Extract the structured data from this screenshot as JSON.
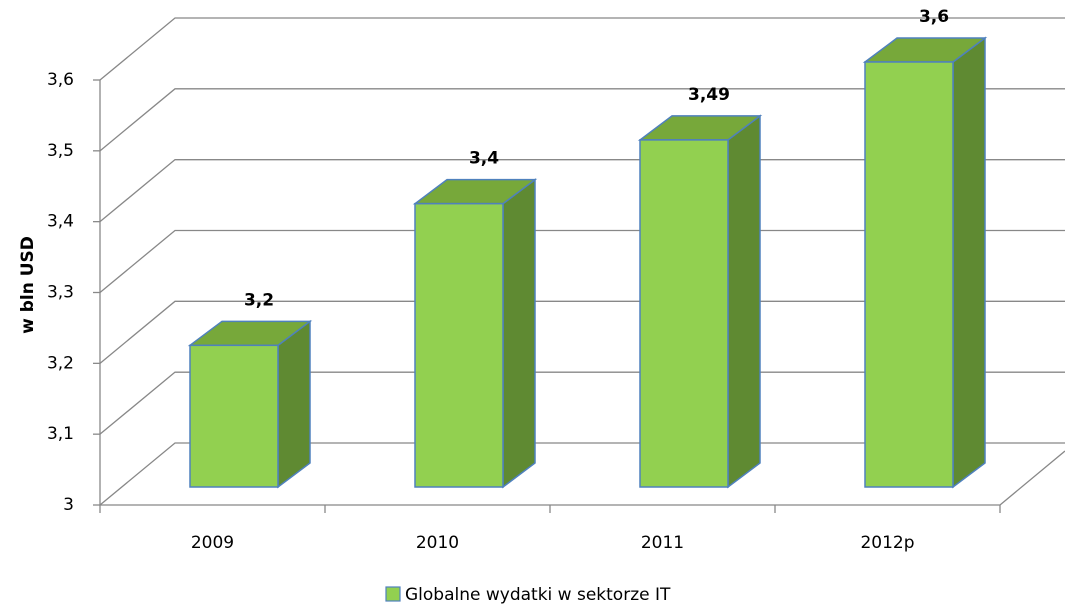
{
  "chart_data": {
    "type": "bar3d",
    "categories": [
      "2009",
      "2010",
      "2011",
      "2012p"
    ],
    "series": [
      {
        "name": "Globalne wydatki w sektorze IT",
        "color": "#92d050",
        "values": [
          3.2,
          3.4,
          3.49,
          3.6
        ],
        "value_labels": [
          "3,2",
          "3,4",
          "3,49",
          "3,6"
        ]
      }
    ],
    "y_label": "w bln USD",
    "ylim": [
      3,
      3.6
    ],
    "yticks": [
      3,
      {
        "value": 3.1,
        "label": "3,1"
      },
      {
        "value": 3.2,
        "label": "3,2"
      },
      {
        "value": 3.3,
        "label": "3,3"
      },
      {
        "value": 3.4,
        "label": "3,4"
      },
      {
        "value": 3.5,
        "label": "3,5"
      },
      {
        "value": 3.6,
        "label": "3,6"
      }
    ],
    "grid": true,
    "legend": "bottom"
  }
}
